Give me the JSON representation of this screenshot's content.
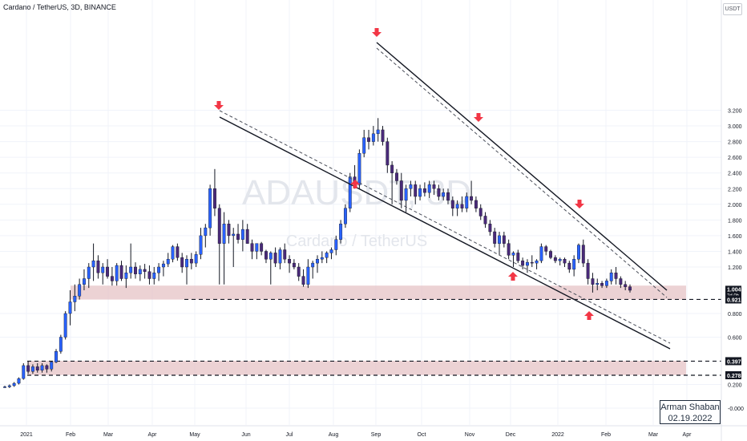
{
  "header": {
    "title": "Cardano / TetherUS, 3D, BINANCE"
  },
  "currency_label": "USDT",
  "watermark": {
    "symbol": "ADAUSDT, 3D",
    "name": "Cardano / TetherUS"
  },
  "signature": {
    "author": "Arman Shaban",
    "date": "02.19.2022"
  },
  "colors": {
    "up": "#2962ff",
    "down": "#4a2a7a",
    "wick": "#131722",
    "zone": "#e6c3c6",
    "arrow": "#f23645",
    "grid": "#f0f3fa",
    "axis_text": "#131722"
  },
  "chart_data": {
    "type": "candlestick",
    "title": "Cardano / TetherUS, 3D, BINANCE",
    "x_axis_labels": [
      "2021",
      "Feb",
      "Mar",
      "Apr",
      "May",
      "Jun",
      "Jul",
      "Aug",
      "Sep",
      "Oct",
      "Nov",
      "Dec",
      "2022",
      "Feb",
      "Mar",
      "Apr"
    ],
    "y_axis_ticks": [
      "3.200",
      "3.000",
      "2.800",
      "2.600",
      "2.400",
      "2.200",
      "2.000",
      "1.800",
      "1.600",
      "1.400",
      "1.200",
      "0.800",
      "0.600",
      "0.200",
      "-0.000"
    ],
    "price_labels": [
      {
        "value": "1.004",
        "sub": "2d 0h",
        "style": "current"
      },
      {
        "value": "0.921",
        "style": "level"
      },
      {
        "value": "0.397",
        "style": "level"
      },
      {
        "value": "0.278",
        "style": "level"
      }
    ],
    "levels": [
      0.921,
      0.397,
      0.278
    ],
    "zones": [
      {
        "from": 0.92,
        "to": 1.04
      },
      {
        "from": 0.28,
        "to": 0.4
      }
    ],
    "candles": [
      [
        0.18,
        0.19,
        0.17,
        0.18
      ],
      [
        0.18,
        0.2,
        0.17,
        0.19
      ],
      [
        0.19,
        0.22,
        0.18,
        0.21
      ],
      [
        0.21,
        0.26,
        0.2,
        0.25
      ],
      [
        0.25,
        0.38,
        0.24,
        0.36
      ],
      [
        0.36,
        0.4,
        0.29,
        0.31
      ],
      [
        0.31,
        0.37,
        0.29,
        0.35
      ],
      [
        0.35,
        0.38,
        0.3,
        0.32
      ],
      [
        0.32,
        0.38,
        0.3,
        0.36
      ],
      [
        0.36,
        0.37,
        0.3,
        0.33
      ],
      [
        0.33,
        0.4,
        0.31,
        0.39
      ],
      [
        0.39,
        0.5,
        0.38,
        0.48
      ],
      [
        0.48,
        0.62,
        0.46,
        0.6
      ],
      [
        0.6,
        0.82,
        0.58,
        0.8
      ],
      [
        0.8,
        1.0,
        0.7,
        0.9
      ],
      [
        0.9,
        1.05,
        0.82,
        0.95
      ],
      [
        0.95,
        1.1,
        0.92,
        1.05
      ],
      [
        1.05,
        1.18,
        1.0,
        1.1
      ],
      [
        1.1,
        1.25,
        1.02,
        1.2
      ],
      [
        1.2,
        1.5,
        1.08,
        1.28
      ],
      [
        1.28,
        1.35,
        1.1,
        1.15
      ],
      [
        1.15,
        1.25,
        1.05,
        1.2
      ],
      [
        1.2,
        1.3,
        1.1,
        1.12
      ],
      [
        1.12,
        1.2,
        1.04,
        1.08
      ],
      [
        1.08,
        1.25,
        1.04,
        1.22
      ],
      [
        1.22,
        1.28,
        1.08,
        1.1
      ],
      [
        1.1,
        1.22,
        1.02,
        1.15
      ],
      [
        1.15,
        1.5,
        1.1,
        1.2
      ],
      [
        1.2,
        1.26,
        1.1,
        1.14
      ],
      [
        1.14,
        1.22,
        1.08,
        1.18
      ],
      [
        1.18,
        1.24,
        1.1,
        1.16
      ],
      [
        1.16,
        1.22,
        1.05,
        1.1
      ],
      [
        1.1,
        1.2,
        1.05,
        1.15
      ],
      [
        1.15,
        1.25,
        1.08,
        1.2
      ],
      [
        1.2,
        1.28,
        1.12,
        1.24
      ],
      [
        1.24,
        1.38,
        1.2,
        1.3
      ],
      [
        1.3,
        1.48,
        1.26,
        1.46
      ],
      [
        1.46,
        1.5,
        1.28,
        1.32
      ],
      [
        1.32,
        1.38,
        1.15,
        1.2
      ],
      [
        1.2,
        1.35,
        1.05,
        1.3
      ],
      [
        1.3,
        1.38,
        1.18,
        1.25
      ],
      [
        1.25,
        1.4,
        1.2,
        1.36
      ],
      [
        1.36,
        1.7,
        1.3,
        1.6
      ],
      [
        1.6,
        1.75,
        1.45,
        1.7
      ],
      [
        1.7,
        2.25,
        1.6,
        2.2
      ],
      [
        2.2,
        2.45,
        1.85,
        1.95
      ],
      [
        1.95,
        2.0,
        1.05,
        1.5
      ],
      [
        1.5,
        1.9,
        1.05,
        1.75
      ],
      [
        1.75,
        1.8,
        1.5,
        1.6
      ],
      [
        1.6,
        1.7,
        1.2,
        1.62
      ],
      [
        1.62,
        1.75,
        1.5,
        1.55
      ],
      [
        1.55,
        1.8,
        1.4,
        1.68
      ],
      [
        1.68,
        1.75,
        1.5,
        1.5
      ],
      [
        1.5,
        1.55,
        1.3,
        1.4
      ],
      [
        1.4,
        1.5,
        1.3,
        1.5
      ],
      [
        1.5,
        1.52,
        1.35,
        1.4
      ],
      [
        1.4,
        1.42,
        1.25,
        1.3
      ],
      [
        1.3,
        1.4,
        1.05,
        1.38
      ],
      [
        1.38,
        1.45,
        1.2,
        1.25
      ],
      [
        1.25,
        1.45,
        1.18,
        1.42
      ],
      [
        1.42,
        1.5,
        1.25,
        1.3
      ],
      [
        1.3,
        1.35,
        1.15,
        1.25
      ],
      [
        1.25,
        1.3,
        1.18,
        1.2
      ],
      [
        1.2,
        1.25,
        1.08,
        1.12
      ],
      [
        1.12,
        1.18,
        1.03,
        1.05
      ],
      [
        1.05,
        1.3,
        1.02,
        1.2
      ],
      [
        1.2,
        1.28,
        1.1,
        1.25
      ],
      [
        1.25,
        1.35,
        1.15,
        1.3
      ],
      [
        1.3,
        1.4,
        1.25,
        1.32
      ],
      [
        1.32,
        1.4,
        1.25,
        1.38
      ],
      [
        1.38,
        1.45,
        1.3,
        1.42
      ],
      [
        1.42,
        1.6,
        1.35,
        1.55
      ],
      [
        1.55,
        1.8,
        1.5,
        1.75
      ],
      [
        1.75,
        2.0,
        1.7,
        1.95
      ],
      [
        1.95,
        2.4,
        1.9,
        2.35
      ],
      [
        2.35,
        2.5,
        2.2,
        2.25
      ],
      [
        2.25,
        2.7,
        2.2,
        2.65
      ],
      [
        2.65,
        2.95,
        2.6,
        2.85
      ],
      [
        2.85,
        2.95,
        2.7,
        2.8
      ],
      [
        2.8,
        3.0,
        2.75,
        2.9
      ],
      [
        2.9,
        3.1,
        2.8,
        2.95
      ],
      [
        2.95,
        3.0,
        2.75,
        2.8
      ],
      [
        2.8,
        2.85,
        2.4,
        2.5
      ],
      [
        2.5,
        2.55,
        2.0,
        2.4
      ],
      [
        2.4,
        2.45,
        2.25,
        2.3
      ],
      [
        2.3,
        2.4,
        1.95,
        2.05
      ],
      [
        2.05,
        2.25,
        1.9,
        2.2
      ],
      [
        2.2,
        2.3,
        2.1,
        2.25
      ],
      [
        2.25,
        2.3,
        2.0,
        2.1
      ],
      [
        2.1,
        2.25,
        2.05,
        2.2
      ],
      [
        2.2,
        2.28,
        2.1,
        2.15
      ],
      [
        2.15,
        2.3,
        2.08,
        2.25
      ],
      [
        2.25,
        2.3,
        2.12,
        2.2
      ],
      [
        2.2,
        2.25,
        2.05,
        2.1
      ],
      [
        2.1,
        2.2,
        2.05,
        2.15
      ],
      [
        2.15,
        2.2,
        2.0,
        2.05
      ],
      [
        2.05,
        2.1,
        1.85,
        1.95
      ],
      [
        1.95,
        2.05,
        1.85,
        2.0
      ],
      [
        2.0,
        2.1,
        1.9,
        1.95
      ],
      [
        1.95,
        2.15,
        1.9,
        2.1
      ],
      [
        2.1,
        2.3,
        2.0,
        2.05
      ],
      [
        2.05,
        2.1,
        1.9,
        1.95
      ],
      [
        1.95,
        2.0,
        1.8,
        1.85
      ],
      [
        1.85,
        1.9,
        1.7,
        1.75
      ],
      [
        1.75,
        1.8,
        1.6,
        1.65
      ],
      [
        1.65,
        1.7,
        1.45,
        1.5
      ],
      [
        1.5,
        1.65,
        1.35,
        1.6
      ],
      [
        1.6,
        1.65,
        1.45,
        1.5
      ],
      [
        1.5,
        1.55,
        1.3,
        1.35
      ],
      [
        1.35,
        1.4,
        1.2,
        1.38
      ],
      [
        1.38,
        1.42,
        1.25,
        1.28
      ],
      [
        1.28,
        1.32,
        1.18,
        1.22
      ],
      [
        1.22,
        1.3,
        1.15,
        1.26
      ],
      [
        1.26,
        1.35,
        1.2,
        1.25
      ],
      [
        1.25,
        1.3,
        1.18,
        1.28
      ],
      [
        1.28,
        1.5,
        1.25,
        1.46
      ],
      [
        1.46,
        1.48,
        1.35,
        1.4
      ],
      [
        1.4,
        1.42,
        1.3,
        1.32
      ],
      [
        1.32,
        1.35,
        1.25,
        1.28
      ],
      [
        1.28,
        1.32,
        1.22,
        1.3
      ],
      [
        1.3,
        1.32,
        1.2,
        1.25
      ],
      [
        1.25,
        1.28,
        1.15,
        1.18
      ],
      [
        1.18,
        1.35,
        1.12,
        1.3
      ],
      [
        1.3,
        1.5,
        1.25,
        1.48
      ],
      [
        1.48,
        1.55,
        1.2,
        1.25
      ],
      [
        1.25,
        1.3,
        1.05,
        1.1
      ],
      [
        1.1,
        1.15,
        0.98,
        1.05
      ],
      [
        1.05,
        1.1,
        1.0,
        1.06
      ],
      [
        1.06,
        1.08,
        1.02,
        1.04
      ],
      [
        1.04,
        1.1,
        1.02,
        1.08
      ],
      [
        1.08,
        1.18,
        1.05,
        1.15
      ],
      [
        1.15,
        1.2,
        1.05,
        1.1
      ],
      [
        1.1,
        1.12,
        1.02,
        1.05
      ],
      [
        1.05,
        1.08,
        1.0,
        1.03
      ],
      [
        1.03,
        1.05,
        0.98,
        1.0
      ]
    ],
    "x_start_date": "2021-01-01",
    "candle_days": 3
  }
}
